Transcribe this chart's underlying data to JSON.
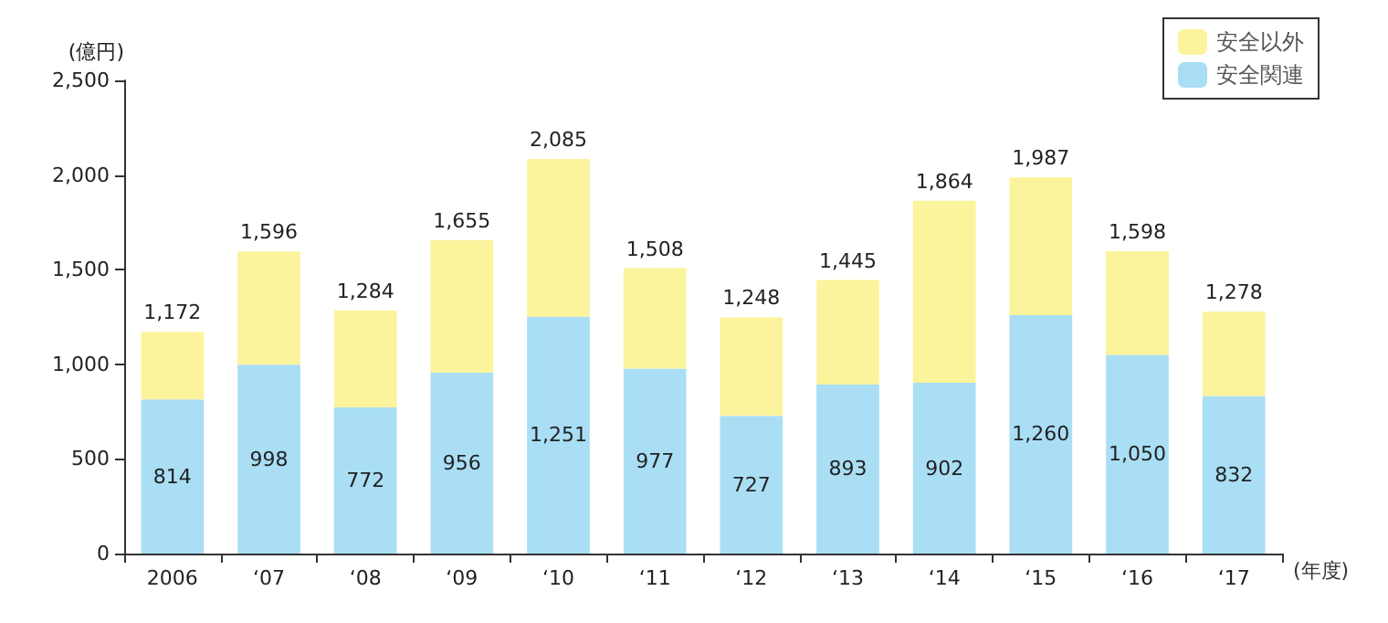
{
  "chart_data": {
    "type": "bar",
    "stacked": true,
    "ylabel": "(億円)",
    "xlabel": "(年度)",
    "categories": [
      "2006",
      "‘07",
      "‘08",
      "‘09",
      "‘10",
      "‘11",
      "‘12",
      "‘13",
      "‘14",
      "‘15",
      "‘16",
      "‘17"
    ],
    "series": [
      {
        "name": "安全関連",
        "color": "#a9def5",
        "values": [
          814,
          998,
          772,
          956,
          1251,
          977,
          727,
          893,
          902,
          1260,
          1050,
          832
        ],
        "value_labels": [
          "814",
          "998",
          "772",
          "956",
          "1,251",
          "977",
          "727",
          "893",
          "902",
          "1,260",
          "1,050",
          "832"
        ]
      },
      {
        "name": "安全以外",
        "color": "#fcf49c",
        "values": [
          358,
          598,
          512,
          699,
          834,
          531,
          521,
          552,
          962,
          727,
          548,
          446
        ]
      }
    ],
    "totals": [
      "1,172",
      "1,596",
      "1,284",
      "1,655",
      "2,085",
      "1,508",
      "1,248",
      "1,445",
      "1,864",
      "1,987",
      "1,598",
      "1,278"
    ],
    "ylim": [
      0,
      2500
    ],
    "yticks": [
      {
        "value": 0,
        "label": "0"
      },
      {
        "value": 500,
        "label": "500"
      },
      {
        "value": 1000,
        "label": "1,000"
      },
      {
        "value": 1500,
        "label": "1,500"
      },
      {
        "value": 2000,
        "label": "2,000"
      },
      {
        "value": 2500,
        "label": "2,500"
      }
    ],
    "grid": false,
    "legend": "top right"
  }
}
